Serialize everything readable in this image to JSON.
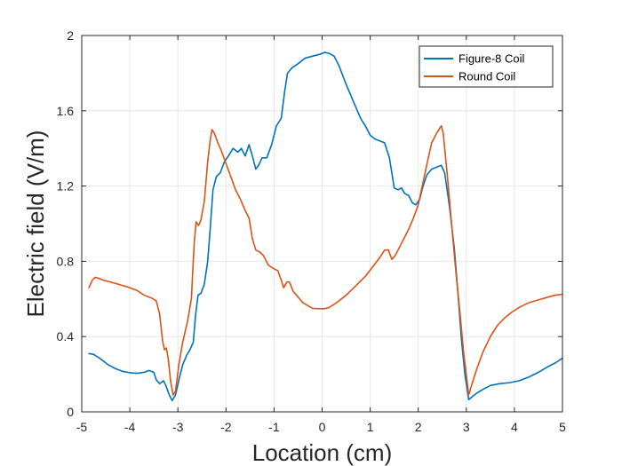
{
  "chart_data": {
    "type": "line",
    "xlabel": "Location (cm)",
    "ylabel": "Electric field (V/m)",
    "xlim": [
      -5,
      5
    ],
    "ylim": [
      0,
      2
    ],
    "xticks": [
      -5,
      -4,
      -3,
      -2,
      -1,
      0,
      1,
      2,
      3,
      4,
      5
    ],
    "yticks": [
      0,
      0.4,
      0.8,
      1.2,
      1.6,
      2
    ],
    "xtick_labels": [
      "-5",
      "-4",
      "-3",
      "-2",
      "-1",
      "0",
      "1",
      "2",
      "3",
      "4",
      "5"
    ],
    "ytick_labels": [
      "0",
      "0.4",
      "0.8",
      "1.2",
      "1.6",
      "2"
    ],
    "grid": true,
    "legend_position": "top-right",
    "series": [
      {
        "name": "Figure-8 Coil",
        "color": "#0072BD",
        "points": [
          [
            -4.85,
            0.31
          ],
          [
            -4.75,
            0.305
          ],
          [
            -4.6,
            0.28
          ],
          [
            -4.45,
            0.25
          ],
          [
            -4.3,
            0.23
          ],
          [
            -4.15,
            0.215
          ],
          [
            -4.0,
            0.208
          ],
          [
            -3.85,
            0.205
          ],
          [
            -3.7,
            0.21
          ],
          [
            -3.6,
            0.22
          ],
          [
            -3.5,
            0.21
          ],
          [
            -3.45,
            0.17
          ],
          [
            -3.38,
            0.15
          ],
          [
            -3.3,
            0.165
          ],
          [
            -3.25,
            0.14
          ],
          [
            -3.18,
            0.09
          ],
          [
            -3.12,
            0.06
          ],
          [
            -3.05,
            0.09
          ],
          [
            -2.97,
            0.18
          ],
          [
            -2.9,
            0.25
          ],
          [
            -2.82,
            0.3
          ],
          [
            -2.75,
            0.33
          ],
          [
            -2.68,
            0.37
          ],
          [
            -2.63,
            0.52
          ],
          [
            -2.58,
            0.62
          ],
          [
            -2.52,
            0.63
          ],
          [
            -2.45,
            0.68
          ],
          [
            -2.38,
            0.8
          ],
          [
            -2.32,
            1.0
          ],
          [
            -2.27,
            1.18
          ],
          [
            -2.2,
            1.25
          ],
          [
            -2.12,
            1.27
          ],
          [
            -2.03,
            1.33
          ],
          [
            -1.95,
            1.36
          ],
          [
            -1.85,
            1.4
          ],
          [
            -1.75,
            1.38
          ],
          [
            -1.68,
            1.4
          ],
          [
            -1.6,
            1.36
          ],
          [
            -1.52,
            1.42
          ],
          [
            -1.45,
            1.36
          ],
          [
            -1.38,
            1.29
          ],
          [
            -1.32,
            1.31
          ],
          [
            -1.25,
            1.35
          ],
          [
            -1.15,
            1.35
          ],
          [
            -1.05,
            1.42
          ],
          [
            -0.95,
            1.52
          ],
          [
            -0.85,
            1.56
          ],
          [
            -0.78,
            1.7
          ],
          [
            -0.72,
            1.8
          ],
          [
            -0.62,
            1.83
          ],
          [
            -0.5,
            1.85
          ],
          [
            -0.35,
            1.88
          ],
          [
            -0.2,
            1.89
          ],
          [
            -0.05,
            1.9
          ],
          [
            0.05,
            1.91
          ],
          [
            0.15,
            1.905
          ],
          [
            0.25,
            1.89
          ],
          [
            0.35,
            1.84
          ],
          [
            0.5,
            1.74
          ],
          [
            0.65,
            1.65
          ],
          [
            0.8,
            1.56
          ],
          [
            0.9,
            1.52
          ],
          [
            1.0,
            1.47
          ],
          [
            1.1,
            1.45
          ],
          [
            1.2,
            1.44
          ],
          [
            1.3,
            1.43
          ],
          [
            1.4,
            1.35
          ],
          [
            1.45,
            1.27
          ],
          [
            1.5,
            1.19
          ],
          [
            1.58,
            1.18
          ],
          [
            1.65,
            1.19
          ],
          [
            1.72,
            1.16
          ],
          [
            1.8,
            1.15
          ],
          [
            1.88,
            1.11
          ],
          [
            1.95,
            1.1
          ],
          [
            2.03,
            1.13
          ],
          [
            2.1,
            1.2
          ],
          [
            2.18,
            1.26
          ],
          [
            2.28,
            1.29
          ],
          [
            2.38,
            1.3
          ],
          [
            2.48,
            1.31
          ],
          [
            2.55,
            1.27
          ],
          [
            2.65,
            1.09
          ],
          [
            2.75,
            0.87
          ],
          [
            2.82,
            0.65
          ],
          [
            2.9,
            0.38
          ],
          [
            2.97,
            0.2
          ],
          [
            3.05,
            0.065
          ],
          [
            3.12,
            0.08
          ],
          [
            3.22,
            0.1
          ],
          [
            3.35,
            0.12
          ],
          [
            3.5,
            0.14
          ],
          [
            3.7,
            0.15
          ],
          [
            3.9,
            0.155
          ],
          [
            4.1,
            0.165
          ],
          [
            4.3,
            0.185
          ],
          [
            4.5,
            0.21
          ],
          [
            4.7,
            0.24
          ],
          [
            4.85,
            0.26
          ],
          [
            5.0,
            0.285
          ]
        ]
      },
      {
        "name": "Round Coil",
        "color": "#D95319",
        "points": [
          [
            -4.85,
            0.66
          ],
          [
            -4.78,
            0.7
          ],
          [
            -4.72,
            0.715
          ],
          [
            -4.65,
            0.71
          ],
          [
            -4.55,
            0.7
          ],
          [
            -4.4,
            0.69
          ],
          [
            -4.2,
            0.675
          ],
          [
            -4.0,
            0.66
          ],
          [
            -3.85,
            0.645
          ],
          [
            -3.7,
            0.62
          ],
          [
            -3.55,
            0.605
          ],
          [
            -3.45,
            0.59
          ],
          [
            -3.38,
            0.52
          ],
          [
            -3.32,
            0.38
          ],
          [
            -3.28,
            0.33
          ],
          [
            -3.24,
            0.34
          ],
          [
            -3.2,
            0.28
          ],
          [
            -3.15,
            0.16
          ],
          [
            -3.1,
            0.09
          ],
          [
            -3.05,
            0.11
          ],
          [
            -2.98,
            0.25
          ],
          [
            -2.9,
            0.37
          ],
          [
            -2.8,
            0.48
          ],
          [
            -2.72,
            0.6
          ],
          [
            -2.66,
            0.9
          ],
          [
            -2.62,
            1.01
          ],
          [
            -2.57,
            0.99
          ],
          [
            -2.52,
            1.02
          ],
          [
            -2.45,
            1.12
          ],
          [
            -2.38,
            1.33
          ],
          [
            -2.33,
            1.44
          ],
          [
            -2.29,
            1.5
          ],
          [
            -2.24,
            1.48
          ],
          [
            -2.17,
            1.43
          ],
          [
            -2.1,
            1.39
          ],
          [
            -2.0,
            1.32
          ],
          [
            -1.9,
            1.25
          ],
          [
            -1.8,
            1.18
          ],
          [
            -1.7,
            1.13
          ],
          [
            -1.6,
            1.07
          ],
          [
            -1.52,
            1.03
          ],
          [
            -1.45,
            0.92
          ],
          [
            -1.38,
            0.86
          ],
          [
            -1.3,
            0.85
          ],
          [
            -1.22,
            0.83
          ],
          [
            -1.12,
            0.78
          ],
          [
            -1.0,
            0.76
          ],
          [
            -0.92,
            0.75
          ],
          [
            -0.85,
            0.7
          ],
          [
            -0.8,
            0.66
          ],
          [
            -0.73,
            0.69
          ],
          [
            -0.68,
            0.69
          ],
          [
            -0.6,
            0.64
          ],
          [
            -0.5,
            0.61
          ],
          [
            -0.4,
            0.58
          ],
          [
            -0.3,
            0.565
          ],
          [
            -0.2,
            0.55
          ],
          [
            -0.05,
            0.548
          ],
          [
            0.05,
            0.548
          ],
          [
            0.15,
            0.555
          ],
          [
            0.3,
            0.58
          ],
          [
            0.5,
            0.62
          ],
          [
            0.7,
            0.67
          ],
          [
            0.9,
            0.72
          ],
          [
            1.05,
            0.77
          ],
          [
            1.2,
            0.82
          ],
          [
            1.3,
            0.86
          ],
          [
            1.38,
            0.86
          ],
          [
            1.45,
            0.81
          ],
          [
            1.52,
            0.83
          ],
          [
            1.6,
            0.87
          ],
          [
            1.7,
            0.92
          ],
          [
            1.8,
            0.97
          ],
          [
            1.9,
            1.03
          ],
          [
            2.0,
            1.1
          ],
          [
            2.1,
            1.22
          ],
          [
            2.2,
            1.34
          ],
          [
            2.28,
            1.43
          ],
          [
            2.38,
            1.48
          ],
          [
            2.48,
            1.52
          ],
          [
            2.52,
            1.48
          ],
          [
            2.6,
            1.27
          ],
          [
            2.7,
            0.98
          ],
          [
            2.78,
            0.75
          ],
          [
            2.87,
            0.52
          ],
          [
            2.95,
            0.3
          ],
          [
            3.05,
            0.09
          ],
          [
            3.12,
            0.15
          ],
          [
            3.22,
            0.23
          ],
          [
            3.35,
            0.32
          ],
          [
            3.5,
            0.4
          ],
          [
            3.65,
            0.46
          ],
          [
            3.8,
            0.5
          ],
          [
            3.95,
            0.53
          ],
          [
            4.1,
            0.555
          ],
          [
            4.3,
            0.58
          ],
          [
            4.5,
            0.595
          ],
          [
            4.7,
            0.61
          ],
          [
            4.85,
            0.62
          ],
          [
            5.0,
            0.625
          ]
        ]
      }
    ]
  }
}
